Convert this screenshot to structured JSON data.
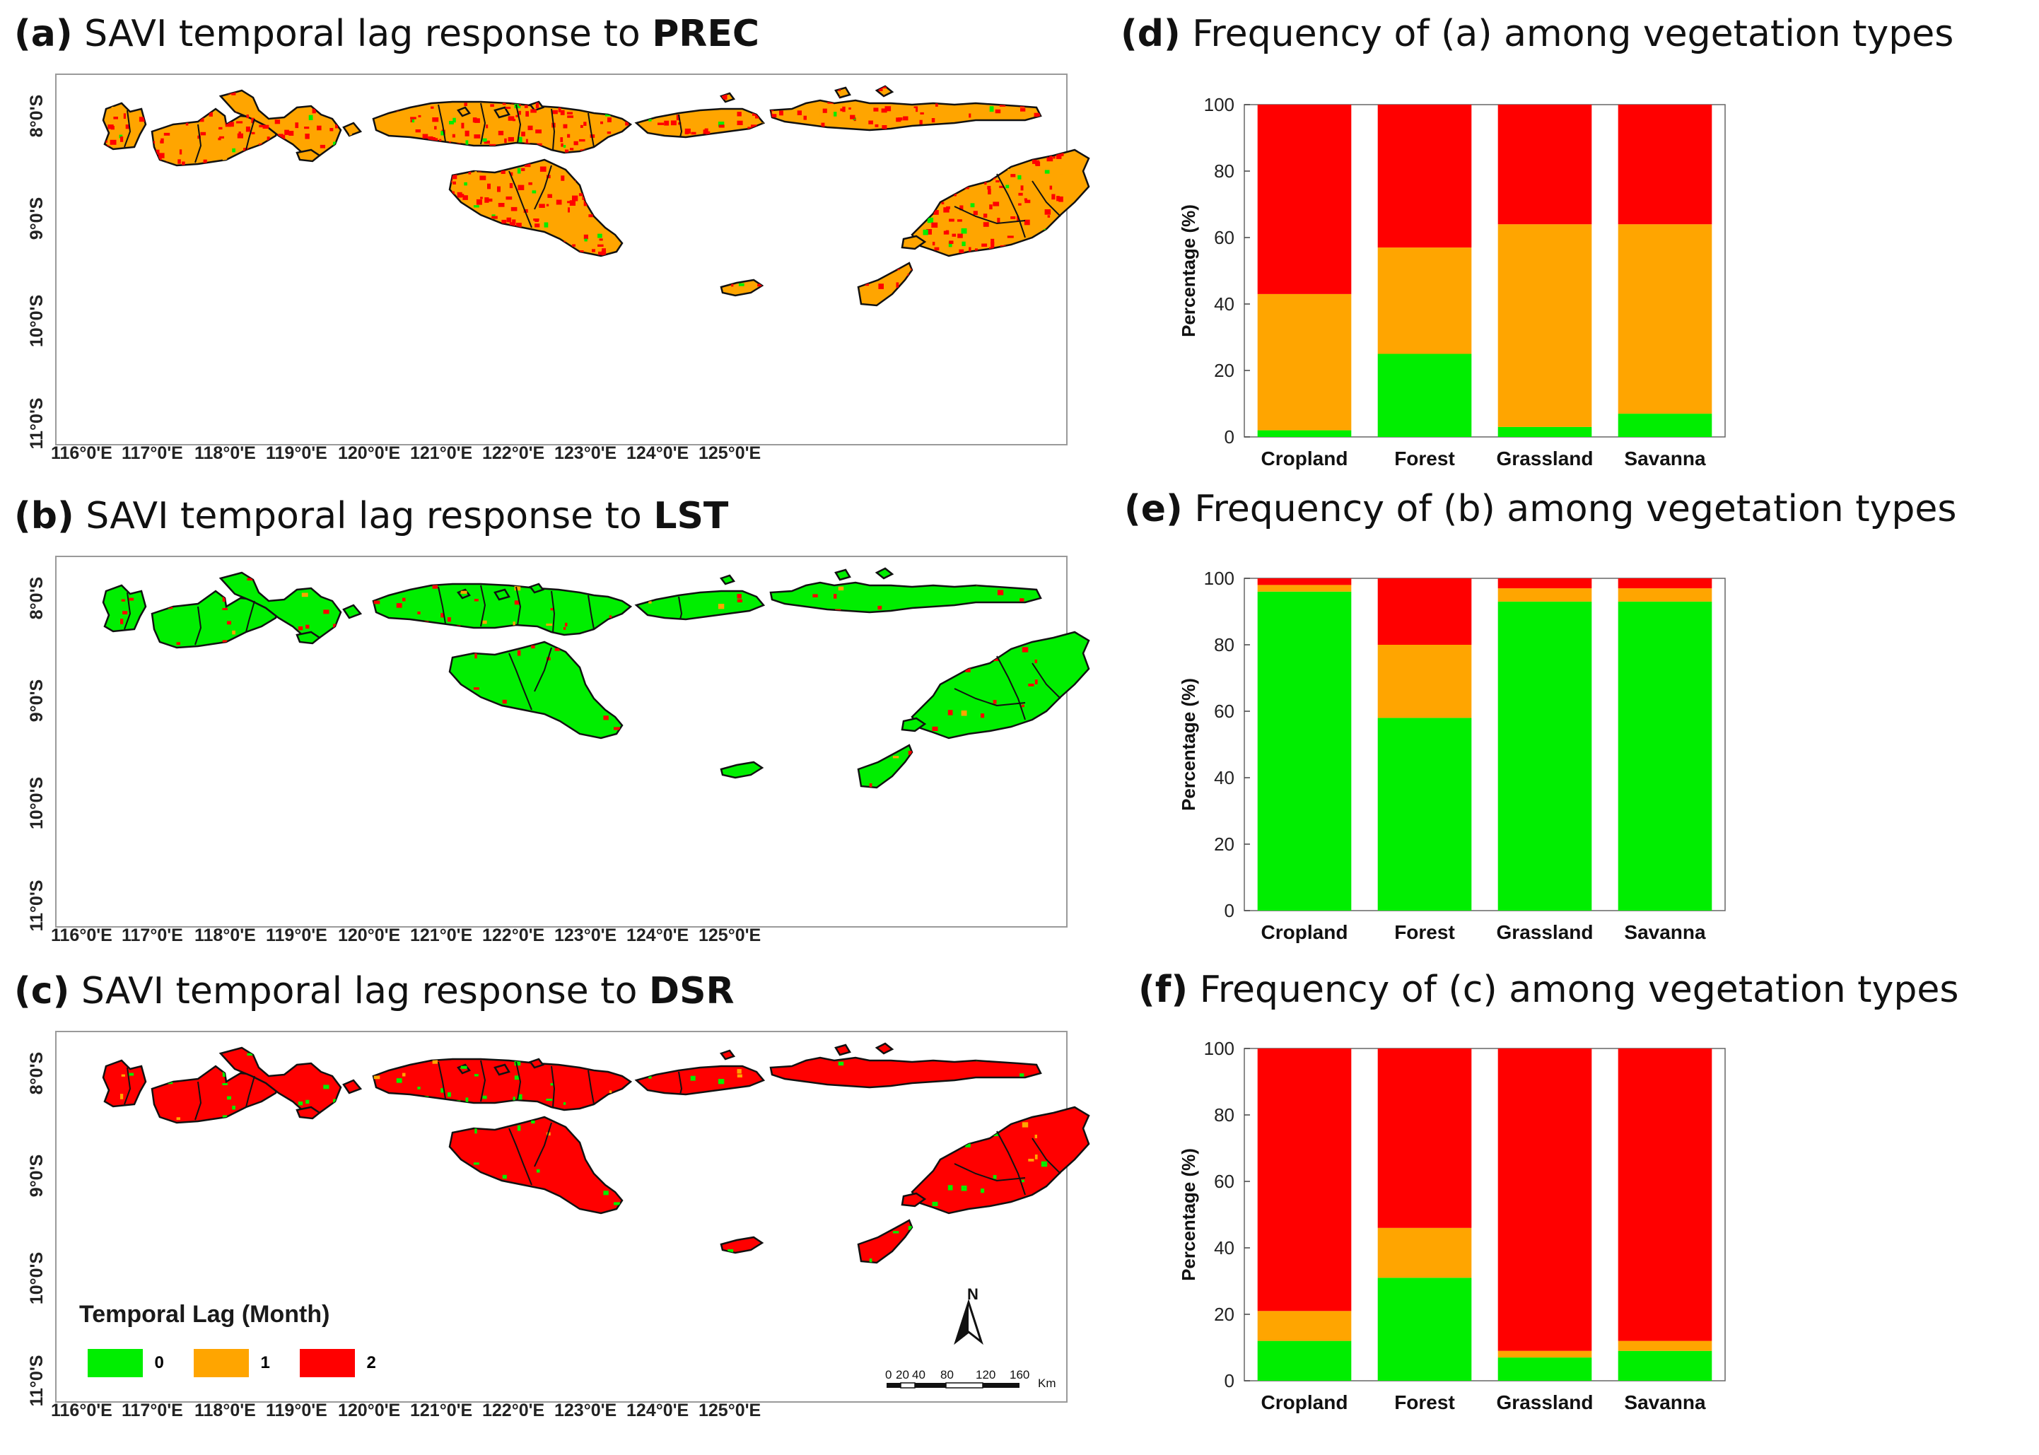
{
  "panels": {
    "a": {
      "label": "(a)",
      "title": "SAVI temporal lag response to ",
      "highlight": "PREC"
    },
    "b": {
      "label": "(b)",
      "title": "SAVI temporal lag response to ",
      "highlight": "LST"
    },
    "c": {
      "label": "(c)",
      "title": "SAVI temporal lag response to ",
      "highlight": "DSR"
    },
    "d": {
      "label": "(d)",
      "title": "Frequency of (a) among vegetation types"
    },
    "e": {
      "label": "(e)",
      "title": "Frequency of (b) among vegetation types"
    },
    "f": {
      "label": "(f)",
      "title": "Frequency of (c) among vegetation types"
    }
  },
  "map_axes": {
    "lon_labels": [
      "116°0'E",
      "117°0'E",
      "118°0'E",
      "119°0'E",
      "120°0'E",
      "121°0'E",
      "122°0'E",
      "123°0'E",
      "124°0'E",
      "125°0'E"
    ],
    "lat_labels": [
      "8°0'S",
      "9°0'S",
      "10°0'S",
      "11°0'S"
    ]
  },
  "legend": {
    "title": "Temporal Lag (Month)",
    "items": [
      {
        "value": "0",
        "color": "#00ee00"
      },
      {
        "value": "1",
        "color": "#ffa500"
      },
      {
        "value": "2",
        "color": "#ff0000"
      }
    ]
  },
  "scale_bar": {
    "ticks": [
      "0",
      "20",
      "40",
      "80",
      "120",
      "160"
    ],
    "unit": "Km",
    "north": "N"
  },
  "colors": {
    "lag0": "#00ee00",
    "lag1": "#ffa500",
    "lag2": "#ff0000"
  },
  "chart_data": [
    {
      "type": "bar",
      "stacked": true,
      "panel": "d",
      "categories": [
        "Cropland",
        "Forest",
        "Grassland",
        "Savanna"
      ],
      "series": [
        {
          "name": "0",
          "values": [
            2,
            25,
            3,
            7
          ]
        },
        {
          "name": "1",
          "values": [
            41,
            32,
            61,
            57
          ]
        },
        {
          "name": "2",
          "values": [
            57,
            43,
            36,
            36
          ]
        }
      ],
      "ylabel": "Percentage (%)",
      "ylim": [
        0,
        100
      ],
      "yticks": [
        0,
        20,
        40,
        60,
        80,
        100
      ]
    },
    {
      "type": "bar",
      "stacked": true,
      "panel": "e",
      "categories": [
        "Cropland",
        "Forest",
        "Grassland",
        "Savanna"
      ],
      "series": [
        {
          "name": "0",
          "values": [
            96,
            58,
            93,
            93
          ]
        },
        {
          "name": "1",
          "values": [
            2,
            22,
            4,
            4
          ]
        },
        {
          "name": "2",
          "values": [
            2,
            20,
            3,
            3
          ]
        }
      ],
      "ylabel": "Percentage (%)",
      "ylim": [
        0,
        100
      ],
      "yticks": [
        0,
        20,
        40,
        60,
        80,
        100
      ]
    },
    {
      "type": "bar",
      "stacked": true,
      "panel": "f",
      "categories": [
        "Cropland",
        "Forest",
        "Grassland",
        "Savanna"
      ],
      "series": [
        {
          "name": "0",
          "values": [
            12,
            31,
            7,
            9
          ]
        },
        {
          "name": "1",
          "values": [
            9,
            15,
            2,
            3
          ]
        },
        {
          "name": "2",
          "values": [
            79,
            54,
            91,
            88
          ]
        }
      ],
      "ylabel": "Percentage (%)",
      "ylim": [
        0,
        100
      ],
      "yticks": [
        0,
        20,
        40,
        60,
        80,
        100
      ]
    }
  ]
}
